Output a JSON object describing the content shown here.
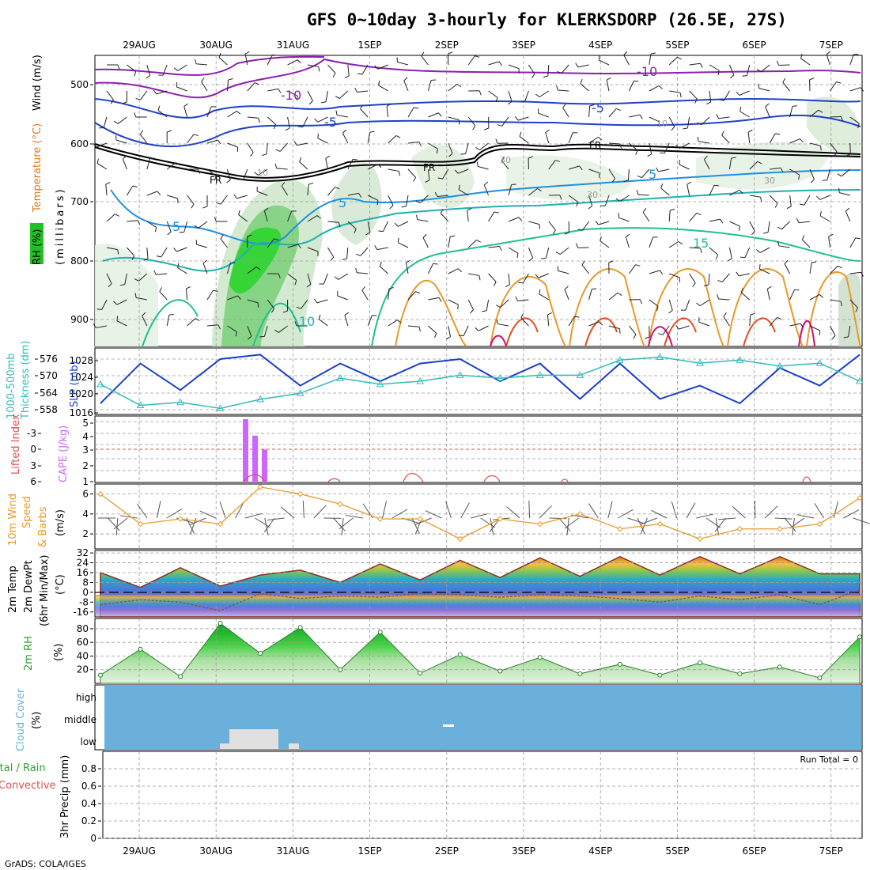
{
  "title": "GFS 0~10day 3-hourly for KLERKSDORP (26.5E, 27S)",
  "footer": "GrADS: COLA/IGES",
  "run_total": "Run Total = 0",
  "dates": [
    "29AUG",
    "30AUG",
    "31AUG",
    "1SEP",
    "2SEP",
    "3SEP",
    "4SEP",
    "5SEP",
    "6SEP",
    "7SEP"
  ],
  "panels": {
    "upper": {
      "labels": [
        "RH (%)",
        "Temperature (°C)",
        "Wind (m/s)",
        "(millibars)"
      ],
      "yticks": [
        "500",
        "600",
        "700",
        "800",
        "900"
      ],
      "contour_labels": [
        "-10",
        "-10",
        "-5",
        "-5",
        "FR",
        "FR",
        "FR",
        "5",
        "5",
        "5",
        "10",
        "15",
        "10",
        "10",
        "30",
        "30",
        "30"
      ]
    },
    "slp": {
      "labels": [
        "1000-500mb",
        "Thickness (dm)",
        "SLP (mb)"
      ],
      "yticks_left": [
        "576",
        "570",
        "564",
        "558"
      ],
      "yticks_right": [
        "1028",
        "1024",
        "1020",
        "1016"
      ]
    },
    "cape": {
      "labels": [
        "Lifted Index",
        "CAPE (J/kg)"
      ],
      "yticks_left": [
        "-3",
        "0",
        "3",
        "6"
      ],
      "yticks_right": [
        "5",
        "4",
        "3",
        "2",
        "1"
      ]
    },
    "wind": {
      "labels": [
        "10m Wind",
        "Speed",
        "& Barbs",
        "(m/s)"
      ],
      "yticks": [
        "6",
        "4",
        "2"
      ]
    },
    "temp": {
      "labels": [
        "2m Temp",
        "2m DewPt",
        "(6hr Min/Max)",
        "(°C)"
      ],
      "yticks": [
        "32",
        "24",
        "16",
        "8",
        "0",
        "-8",
        "-16"
      ]
    },
    "rh": {
      "labels": [
        "2m RH",
        "(%)"
      ],
      "yticks": [
        "80",
        "60",
        "40",
        "20"
      ]
    },
    "cloud": {
      "labels": [
        "Cloud Cover",
        "(%)"
      ],
      "levels": [
        "high",
        "middle",
        "low"
      ]
    },
    "precip": {
      "labels": [
        "Total / Rain",
        "Convective",
        "3hr Precip (mm)"
      ],
      "yticks": [
        "0.8",
        "0.6",
        "0.4",
        "0.2",
        "0"
      ]
    }
  },
  "colors": {
    "background": "#ffffff",
    "grid": "#999999",
    "thickness": "#33bbbb",
    "slp": "#1a3fc8",
    "cape": "#cc66ff",
    "lifted_index": "#e05050",
    "wind_speed": "#e69a28",
    "cloud": "#6ab0da",
    "rh": "#2ca02c"
  },
  "chart_data": [
    {
      "type": "line",
      "title": "1000-500mb Thickness (dm) / SLP (mb)",
      "x": [
        "29AUG 00",
        "29AUG 12",
        "30AUG 00",
        "30AUG 12",
        "31AUG 00",
        "31AUG 12",
        "1SEP 00",
        "1SEP 12",
        "2SEP 00",
        "2SEP 12",
        "3SEP 00",
        "3SEP 12",
        "4SEP 00",
        "4SEP 12",
        "5SEP 00",
        "5SEP 12",
        "6SEP 00",
        "6SEP 12",
        "7SEP 00",
        "7SEP 12"
      ],
      "series": [
        {
          "name": "SLP (mb)",
          "values": [
            1017.5,
            1026.5,
            1020.5,
            1027.5,
            1028.5,
            1021.5,
            1026.5,
            1022.5,
            1026.5,
            1027.5,
            1022.5,
            1026.5,
            1018.5,
            1026.5,
            1018.5,
            1021.5,
            1017.5,
            1025.5,
            1021.5,
            1028.5
          ]
        },
        {
          "name": "1000-500mb Thickness (dm)",
          "values": [
            566,
            559,
            560,
            558,
            561,
            563,
            568,
            566,
            567,
            569,
            568,
            569,
            569,
            574,
            575,
            573,
            574,
            572,
            573,
            567
          ]
        }
      ],
      "ylim_left": [
        556,
        578
      ],
      "ylim_right": [
        1015,
        1030
      ]
    },
    {
      "type": "bar",
      "title": "CAPE (J/kg)",
      "x": [
        "30AUG 09",
        "30AUG 15",
        "30AUG 21"
      ],
      "values": [
        5,
        3.7,
        2.6
      ]
    },
    {
      "type": "line",
      "title": "10m Wind Speed (m/s)",
      "x": [
        "29AUG 00",
        "29AUG 12",
        "30AUG 00",
        "30AUG 12",
        "31AUG 00",
        "31AUG 12",
        "1SEP 00",
        "1SEP 12",
        "2SEP 00",
        "2SEP 12",
        "3SEP 00",
        "3SEP 12",
        "4SEP 00",
        "4SEP 12",
        "5SEP 00",
        "5SEP 12",
        "6SEP 00",
        "6SEP 12",
        "7SEP 00",
        "7SEP 12"
      ],
      "values": [
        6.0,
        3.0,
        3.5,
        3.0,
        6.7,
        6.0,
        5.0,
        3.5,
        3.5,
        1.5,
        3.5,
        3.0,
        4.0,
        2.5,
        3.0,
        1.5,
        2.5,
        2.5,
        3.0,
        5.6
      ],
      "ylim": [
        0.5,
        7
      ]
    },
    {
      "type": "area",
      "title": "2m Temp / 2m DewPt (°C)",
      "x": [
        "29AUG 00",
        "29AUG 12",
        "30AUG 00",
        "30AUG 12",
        "31AUG 00",
        "31AUG 12",
        "1SEP 00",
        "1SEP 12",
        "2SEP 00",
        "2SEP 12",
        "3SEP 00",
        "3SEP 12",
        "4SEP 00",
        "4SEP 12",
        "5SEP 00",
        "5SEP 12",
        "6SEP 00",
        "6SEP 12",
        "7SEP 00",
        "7SEP 12"
      ],
      "series": [
        {
          "name": "2m Temp",
          "values": [
            16,
            4,
            20,
            5,
            14,
            18,
            8,
            23,
            10,
            26,
            12,
            28,
            13,
            29,
            14,
            29,
            15,
            29,
            15,
            15
          ]
        },
        {
          "name": "2m DewPt",
          "values": [
            -10,
            -6,
            -8,
            -15,
            -1,
            -5,
            -3,
            -4,
            -1,
            -2,
            -4,
            -2,
            -3,
            -5,
            -8,
            -3,
            -6,
            -2,
            -10,
            2
          ]
        }
      ],
      "ylim": [
        -20,
        34
      ]
    },
    {
      "type": "area",
      "title": "2m RH (%)",
      "x": [
        "29AUG 00",
        "29AUG 12",
        "30AUG 00",
        "30AUG 12",
        "31AUG 00",
        "31AUG 12",
        "1SEP 00",
        "1SEP 12",
        "2SEP 00",
        "2SEP 12",
        "3SEP 00",
        "3SEP 12",
        "4SEP 00",
        "4SEP 12",
        "5SEP 00",
        "5SEP 12",
        "6SEP 00",
        "6SEP 12",
        "7SEP 00",
        "7SEP 12"
      ],
      "values": [
        12,
        50,
        10,
        88,
        44,
        82,
        20,
        75,
        15,
        42,
        18,
        38,
        14,
        28,
        12,
        30,
        14,
        24,
        8,
        68
      ],
      "ylim": [
        0,
        95
      ]
    },
    {
      "type": "bar",
      "title": "3hr Precip (mm)",
      "x": [
        "29AUG",
        "30AUG",
        "31AUG",
        "1SEP",
        "2SEP",
        "3SEP",
        "4SEP",
        "5SEP",
        "6SEP",
        "7SEP"
      ],
      "values": [
        0,
        0,
        0,
        0,
        0,
        0,
        0,
        0,
        0,
        0
      ],
      "ylim": [
        0,
        1
      ]
    }
  ]
}
